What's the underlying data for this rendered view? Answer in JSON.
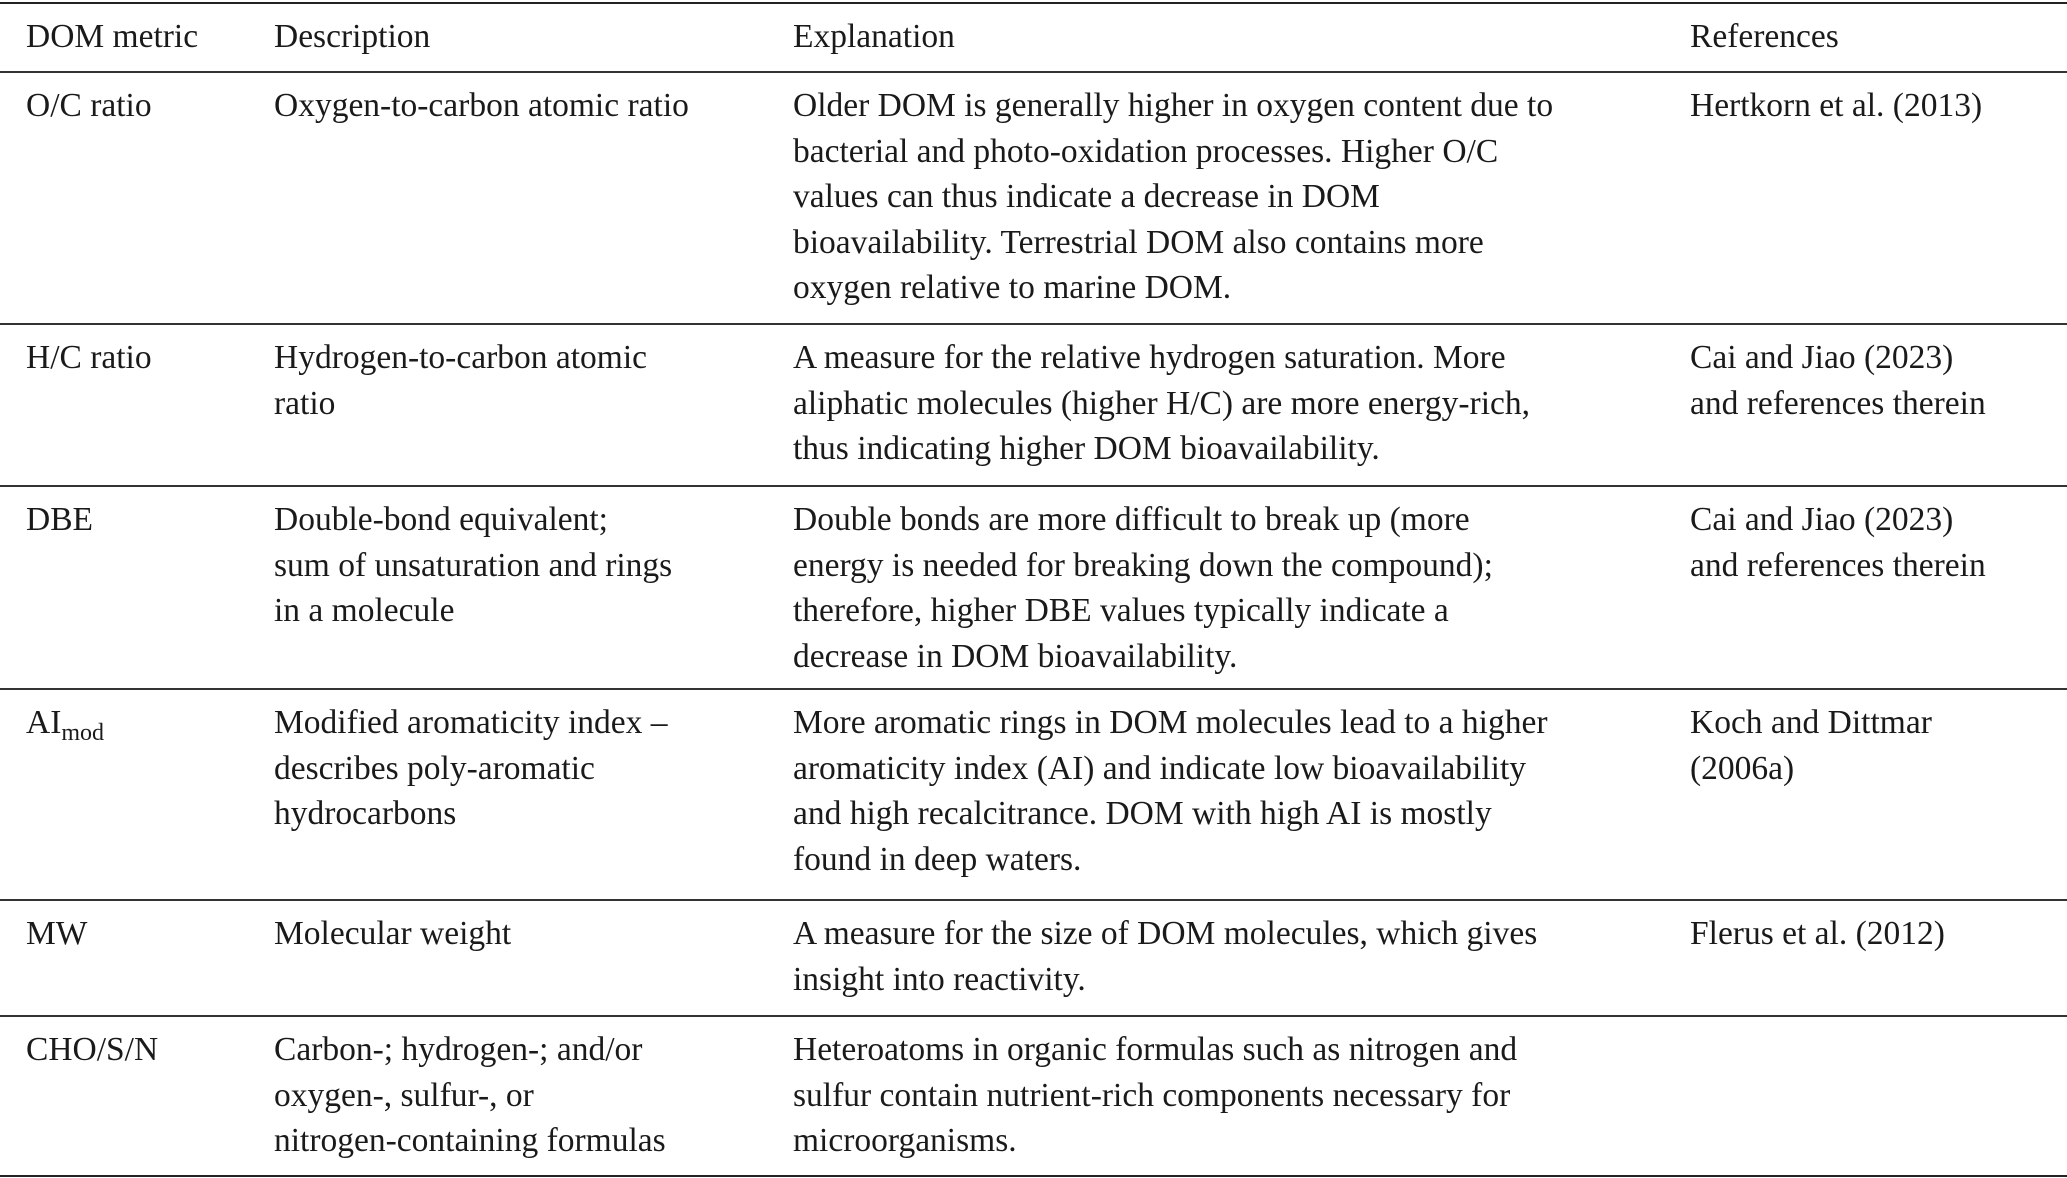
{
  "header": {
    "metric": "DOM metric",
    "description": "Description",
    "explanation": "Explanation",
    "references": "References"
  },
  "rows": [
    {
      "metric": "O/C ratio",
      "metric_sub": "",
      "description": [
        "Oxygen-to-carbon atomic ratio"
      ],
      "explanation": [
        "Older DOM is generally higher in oxygen content due to",
        "bacterial and photo-oxidation processes. Higher O/C",
        "values can thus indicate a decrease in DOM",
        "bioavailability. Terrestrial DOM also contains more",
        "oxygen relative to marine DOM."
      ],
      "references": [
        "Hertkorn et al. (2013)"
      ]
    },
    {
      "metric": "H/C ratio",
      "metric_sub": "",
      "description": [
        "Hydrogen-to-carbon atomic",
        "ratio"
      ],
      "explanation": [
        "A measure for the relative hydrogen saturation. More",
        "aliphatic molecules (higher H/C) are more energy-rich,",
        "thus indicating higher DOM bioavailability."
      ],
      "references": [
        "Cai and Jiao (2023)",
        "and references therein"
      ]
    },
    {
      "metric": "DBE",
      "metric_sub": "",
      "description": [
        "Double-bond equivalent;",
        "sum of unsaturation and rings",
        "in a molecule"
      ],
      "explanation": [
        "Double bonds are more difficult to break up (more",
        "energy is needed for breaking down the compound);",
        "therefore, higher DBE values typically indicate a",
        "decrease in DOM bioavailability."
      ],
      "references": [
        "Cai and Jiao (2023)",
        "and references therein"
      ]
    },
    {
      "metric": "AI",
      "metric_sub": "mod",
      "description": [
        "Modified aromaticity index –",
        "describes poly-aromatic",
        "hydrocarbons"
      ],
      "explanation": [
        "More aromatic rings in DOM molecules lead to a higher",
        "aromaticity index (AI) and indicate low bioavailability",
        "and high recalcitrance. DOM with high AI is mostly",
        "found in deep waters."
      ],
      "references": [
        "Koch and Dittmar",
        "(2006a)"
      ]
    },
    {
      "metric": "MW",
      "metric_sub": "",
      "description": [
        "Molecular weight"
      ],
      "explanation": [
        "A measure for the size of DOM molecules, which gives",
        "insight into reactivity."
      ],
      "references": [
        "Flerus et al. (2012)"
      ]
    },
    {
      "metric": "CHO/S/N",
      "metric_sub": "",
      "description": [
        "Carbon-; hydrogen-; and/or",
        "oxygen-, sulfur-, or",
        "nitrogen-containing formulas"
      ],
      "explanation": [
        "Heteroatoms in organic formulas such as nitrogen and",
        "sulfur contain nutrient-rich components necessary for",
        "microorganisms."
      ],
      "references": []
    }
  ]
}
